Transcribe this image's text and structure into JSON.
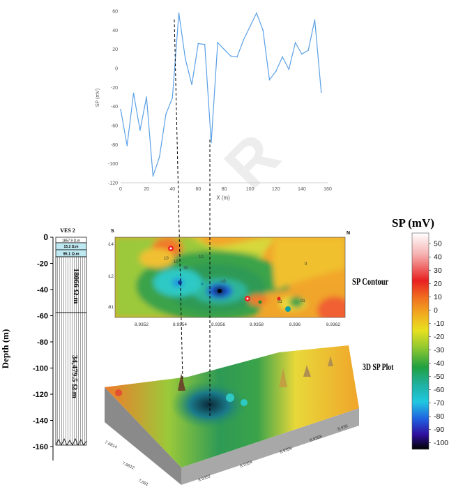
{
  "chart_data": [
    {
      "type": "line",
      "xlabel": "X (m)",
      "ylabel": "SP (mV)",
      "xlim": [
        0,
        160
      ],
      "ylim": [
        -120,
        60
      ],
      "xticks": [
        "0",
        "20",
        "40",
        "60",
        "80",
        "100",
        "120",
        "140",
        "160"
      ],
      "yticks": [
        "60",
        "40",
        "20",
        "0",
        "-20",
        "-40",
        "-60",
        "-80",
        "-100",
        "-120"
      ],
      "series": [
        {
          "color": "#5aa0e6",
          "x": [
            0,
            5,
            10,
            15,
            20,
            25,
            30,
            35,
            40,
            45,
            50,
            55,
            60,
            65,
            70,
            75,
            80,
            85,
            90,
            95,
            100,
            105,
            110,
            115,
            120,
            125,
            130,
            135,
            140,
            145,
            150,
            155
          ],
          "y": [
            -43,
            -81,
            -26,
            -65,
            -30,
            -113,
            -93,
            -48,
            -31,
            58,
            10,
            -17,
            26,
            25,
            -78,
            27,
            20,
            13,
            12,
            30,
            44,
            58,
            40,
            -12,
            -3,
            12,
            -1,
            27,
            15,
            19,
            51,
            -25
          ]
        }
      ]
    },
    {
      "type": "heatmap",
      "title": "SP Contour",
      "xticks": [
        "8.9352",
        "8.9354",
        "8.9356",
        "8.9358",
        "8.936",
        "8.9362"
      ],
      "yticks": [
        "7.6814",
        "7.6812",
        "7.681"
      ],
      "north_label": "N",
      "south_label": "S",
      "contour_labels": [
        "10",
        "10",
        "30",
        "10",
        "-10",
        "01",
        "01",
        "0"
      ]
    },
    {
      "type": "table",
      "title": "VES 2",
      "ylabel": "Depth (m)",
      "depth_ticks": [
        "0",
        "-20",
        "-40",
        "-60",
        "-80",
        "-100",
        "-120",
        "-140",
        "-160"
      ],
      "layers": [
        "1857.9 Ω.m",
        "15.2 Ω.m",
        "95.1 Ω.m",
        "18066 Ω.m",
        "34,479.5 Ω.m"
      ]
    },
    {
      "type": "heatmap",
      "title": "3D SP Plot",
      "x_axis_ticks": [
        "8.9352",
        "8.9354",
        "8.9356",
        "8.9358",
        "8.936"
      ],
      "y_axis_ticks": [
        "7.6814",
        "7.6812",
        "7.681"
      ]
    },
    {
      "type": "heatmap",
      "title": "SP (mV)",
      "colorbar_ticks": [
        "50",
        "40",
        "30",
        "20",
        "10",
        "0",
        "-10",
        "-20",
        "-30",
        "-40",
        "-50",
        "-60",
        "-70",
        "-80",
        "-90",
        "-100"
      ],
      "range": [
        -105,
        58
      ]
    }
  ]
}
